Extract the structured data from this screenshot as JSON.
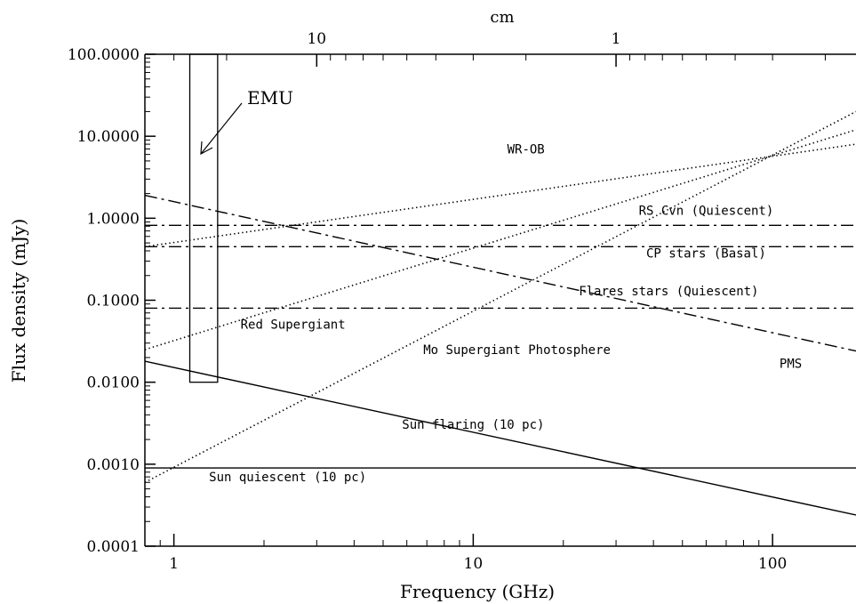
{
  "chart_data": {
    "type": "line",
    "xlabel": "Frequency (GHz)",
    "ylabel": "Flux density (mJy)",
    "top_axis_label": "cm",
    "x_scale": "log",
    "y_scale": "log",
    "xlim": [
      0.8,
      190
    ],
    "ylim": [
      0.0001,
      100
    ],
    "x_ticks": [
      {
        "value": 1,
        "label": "1"
      },
      {
        "value": 10,
        "label": "10"
      },
      {
        "value": 100,
        "label": "100"
      }
    ],
    "y_ticks": [
      {
        "value": 0.0001,
        "label": "0.0001"
      },
      {
        "value": 0.001,
        "label": "0.0010"
      },
      {
        "value": 0.01,
        "label": "0.0100"
      },
      {
        "value": 0.1,
        "label": "0.1000"
      },
      {
        "value": 1,
        "label": "1.0000"
      },
      {
        "value": 10,
        "label": "10.0000"
      },
      {
        "value": 100,
        "label": "100.0000"
      }
    ],
    "top_ticks": [
      {
        "wavelength_cm": 10,
        "label": "10"
      },
      {
        "wavelength_cm": 1,
        "label": "1"
      }
    ],
    "grid": false,
    "legend": "none",
    "series": [
      {
        "name": "Sun quiescent (10 pc)",
        "style": "solid",
        "x": [
          0.8,
          190
        ],
        "y": [
          0.0009,
          0.0009
        ]
      },
      {
        "name": "Sun flaring (10 pc)",
        "style": "solid",
        "x": [
          0.8,
          190
        ],
        "y": [
          0.018,
          0.00024
        ]
      },
      {
        "name": "RS Cvn (Quiescent)",
        "style": "dashdot",
        "x": [
          0.8,
          190
        ],
        "y": [
          0.82,
          0.82
        ]
      },
      {
        "name": "CP stars (Basal)",
        "style": "dashdot",
        "x": [
          0.8,
          190
        ],
        "y": [
          0.45,
          0.45
        ]
      },
      {
        "name": "Flares stars (Quiescent)",
        "style": "dashdot",
        "x": [
          0.8,
          190
        ],
        "y": [
          0.08,
          0.08
        ]
      },
      {
        "name": "PMS",
        "style": "dashdot",
        "x": [
          0.8,
          190
        ],
        "y": [
          1.9,
          0.024
        ]
      },
      {
        "name": "WR-OB",
        "style": "dotted",
        "x": [
          0.8,
          190
        ],
        "y": [
          0.45,
          8.0
        ]
      },
      {
        "name": "Red Supergiant",
        "style": "dotted",
        "x": [
          0.8,
          190
        ],
        "y": [
          0.025,
          12.0
        ]
      },
      {
        "name": "Mo Supergiant Photosphere",
        "style": "dotted",
        "x": [
          0.8,
          190
        ],
        "y": [
          0.0006,
          20.0
        ]
      }
    ],
    "annotations": [
      {
        "text": "WR-OB",
        "x": 15,
        "y": 6.2
      },
      {
        "text": "RS Cvn (Quiescent)",
        "x": 60,
        "y": 1.1
      },
      {
        "text": "CP stars (Basal)",
        "x": 60,
        "y": 0.33
      },
      {
        "text": "Flares stars (Quiescent)",
        "x": 45,
        "y": 0.115
      },
      {
        "text": "Red Supergiant",
        "x": 2.5,
        "y": 0.045
      },
      {
        "text": "Mo Supergiant Photosphere",
        "x": 14,
        "y": 0.022
      },
      {
        "text": "PMS",
        "x": 115,
        "y": 0.015
      },
      {
        "text": "Sun flaring (10 pc)",
        "x": 10,
        "y": 0.0027
      },
      {
        "text": "Sun quiescent (10 pc)",
        "x": 2.4,
        "y": 0.00062
      }
    ],
    "emu_box": {
      "label": "EMU",
      "x_range": [
        1.13,
        1.4
      ],
      "y_range": [
        0.01,
        100
      ]
    }
  }
}
